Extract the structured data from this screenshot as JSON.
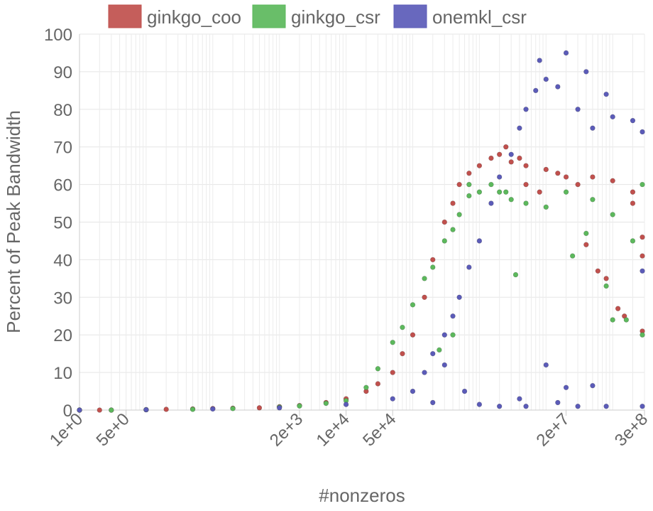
{
  "chart_data": {
    "type": "scatter",
    "xscale": "log",
    "xlabel": "#nonzeros",
    "ylabel": "Percent of Peak Bandwidth",
    "xlim": [
      1,
      300000000
    ],
    "ylim": [
      0,
      100
    ],
    "grid": true,
    "legend_position": "top",
    "x_ticks": [
      {
        "value": 1,
        "label": "1e+0"
      },
      {
        "value": 5,
        "label": "5e+0"
      },
      {
        "value": 2000,
        "label": "2e+3"
      },
      {
        "value": 10000,
        "label": "1e+4"
      },
      {
        "value": 50000,
        "label": "5e+4"
      },
      {
        "value": 20000000,
        "label": "2e+7"
      },
      {
        "value": 300000000,
        "label": "3e+8"
      }
    ],
    "y_ticks": [
      0,
      10,
      20,
      30,
      40,
      50,
      60,
      70,
      80,
      90,
      100
    ],
    "series": [
      {
        "name": "ginkgo_coo",
        "color": "#c0504d",
        "points": [
          [
            1,
            0
          ],
          [
            2,
            0
          ],
          [
            3,
            0
          ],
          [
            10,
            0.1
          ],
          [
            20,
            0.2
          ],
          [
            50,
            0.3
          ],
          [
            100,
            0.4
          ],
          [
            200,
            0.5
          ],
          [
            500,
            0.6
          ],
          [
            1000,
            0.9
          ],
          [
            2000,
            1.2
          ],
          [
            5000,
            2
          ],
          [
            10000,
            3
          ],
          [
            20000,
            5
          ],
          [
            30000,
            7
          ],
          [
            50000,
            10
          ],
          [
            70000,
            15
          ],
          [
            100000,
            20
          ],
          [
            150000,
            30
          ],
          [
            200000,
            40
          ],
          [
            300000,
            50
          ],
          [
            400000,
            55
          ],
          [
            500000,
            60
          ],
          [
            700000,
            63
          ],
          [
            1000000,
            65
          ],
          [
            1500000,
            67
          ],
          [
            2000000,
            68
          ],
          [
            3000000,
            66
          ],
          [
            5000000,
            65
          ],
          [
            10000000,
            64
          ],
          [
            20000000,
            62
          ],
          [
            50000000,
            62
          ],
          [
            100000000,
            61
          ],
          [
            200000000,
            58
          ],
          [
            300000000,
            46
          ],
          [
            300000000,
            41
          ],
          [
            300000000,
            21
          ],
          [
            40000000,
            44
          ],
          [
            60000000,
            37
          ],
          [
            80000000,
            35
          ],
          [
            120000000,
            27
          ],
          [
            150000000,
            25
          ],
          [
            200000000,
            55
          ],
          [
            5000000,
            60
          ],
          [
            8000000,
            58
          ],
          [
            15000000,
            63
          ],
          [
            30000000,
            60
          ],
          [
            2500000,
            70
          ],
          [
            4000000,
            67
          ]
        ]
      },
      {
        "name": "ginkgo_csr",
        "color": "#5cb85c",
        "points": [
          [
            1,
            0
          ],
          [
            3,
            0
          ],
          [
            10,
            0.1
          ],
          [
            50,
            0.2
          ],
          [
            200,
            0.4
          ],
          [
            1000,
            0.8
          ],
          [
            2000,
            1.1
          ],
          [
            5000,
            1.8
          ],
          [
            10000,
            2.5
          ],
          [
            20000,
            6
          ],
          [
            30000,
            11
          ],
          [
            50000,
            18
          ],
          [
            70000,
            22
          ],
          [
            100000,
            28
          ],
          [
            150000,
            35
          ],
          [
            200000,
            38
          ],
          [
            300000,
            45
          ],
          [
            400000,
            48
          ],
          [
            500000,
            52
          ],
          [
            700000,
            57
          ],
          [
            1000000,
            58
          ],
          [
            1500000,
            60
          ],
          [
            2000000,
            58
          ],
          [
            3000000,
            56
          ],
          [
            5000000,
            55
          ],
          [
            10000000,
            54
          ],
          [
            20000000,
            58
          ],
          [
            50000000,
            56
          ],
          [
            100000000,
            52
          ],
          [
            200000000,
            45
          ],
          [
            300000000,
            60
          ],
          [
            300000000,
            20
          ],
          [
            80000000,
            33
          ],
          [
            100000000,
            24
          ],
          [
            160000000,
            24
          ],
          [
            25000000,
            41
          ],
          [
            3500000,
            36
          ],
          [
            700000,
            60
          ],
          [
            400000,
            20
          ],
          [
            250000,
            16
          ],
          [
            2500000,
            58
          ],
          [
            40000000,
            47
          ]
        ]
      },
      {
        "name": "onemkl_csr",
        "color": "#5b5bb8",
        "points": [
          [
            1,
            0
          ],
          [
            10,
            0.1
          ],
          [
            100,
            0.3
          ],
          [
            1000,
            0.6
          ],
          [
            10000,
            1.5
          ],
          [
            50000,
            3
          ],
          [
            100000,
            5
          ],
          [
            150000,
            10
          ],
          [
            200000,
            15
          ],
          [
            300000,
            20
          ],
          [
            400000,
            25
          ],
          [
            500000,
            30
          ],
          [
            700000,
            38
          ],
          [
            1000000,
            45
          ],
          [
            1500000,
            55
          ],
          [
            2000000,
            62
          ],
          [
            3000000,
            68
          ],
          [
            4000000,
            75
          ],
          [
            5000000,
            80
          ],
          [
            7000000,
            85
          ],
          [
            8000000,
            93
          ],
          [
            10000000,
            88
          ],
          [
            15000000,
            86
          ],
          [
            20000000,
            95
          ],
          [
            30000000,
            80
          ],
          [
            40000000,
            90
          ],
          [
            50000000,
            75
          ],
          [
            80000000,
            84
          ],
          [
            100000000,
            78
          ],
          [
            200000000,
            77
          ],
          [
            300000000,
            74
          ],
          [
            300000000,
            37
          ],
          [
            300000000,
            1
          ],
          [
            50000000,
            6.5
          ],
          [
            80000000,
            1
          ],
          [
            30000000,
            1
          ],
          [
            15000000,
            2
          ],
          [
            5000000,
            1
          ],
          [
            2000000,
            1
          ],
          [
            1000000,
            1.5
          ],
          [
            600000,
            5
          ],
          [
            200000,
            2
          ],
          [
            300000,
            12
          ],
          [
            4000000,
            3
          ],
          [
            20000000,
            6
          ],
          [
            10000000,
            12
          ]
        ]
      }
    ]
  }
}
